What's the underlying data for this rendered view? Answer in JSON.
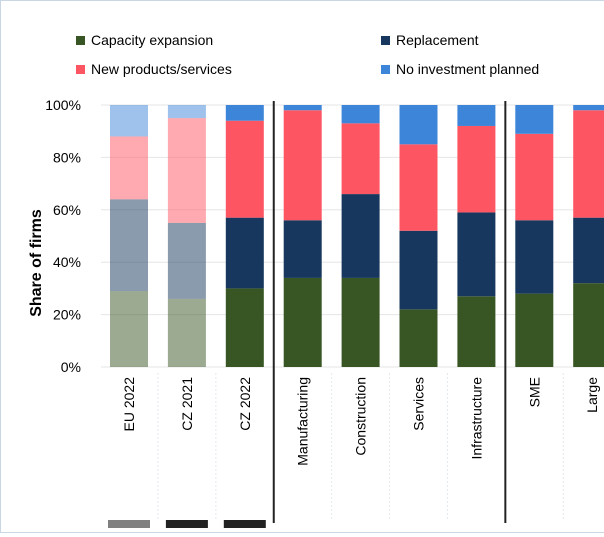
{
  "chart_data": {
    "type": "bar",
    "stacked": true,
    "ylabel": "Share of firms",
    "ylim": [
      0,
      100
    ],
    "yticks": [
      "0%",
      "20%",
      "40%",
      "60%",
      "80%",
      "100%"
    ],
    "legend_placement": "top",
    "categories": [
      "EU 2022",
      "CZ 2021",
      "CZ 2022",
      "Manufacturing",
      "Construction",
      "Services",
      "Infrastructure",
      "SME",
      "Large"
    ],
    "series": [
      {
        "name": "Capacity expansion",
        "color": "#375623",
        "values": [
          29,
          26,
          30,
          34,
          34,
          22,
          27,
          28,
          32
        ]
      },
      {
        "name": "Replacement",
        "color": "#17375e",
        "values": [
          35,
          29,
          27,
          22,
          32,
          30,
          32,
          28,
          25
        ]
      },
      {
        "name": "New products/services",
        "color": "#fe5562",
        "values": [
          24,
          40,
          37,
          42,
          27,
          33,
          33,
          33,
          41
        ]
      },
      {
        "name": "No investment planned",
        "color": "#3d85d8",
        "values": [
          12,
          5,
          6,
          2,
          7,
          15,
          8,
          11,
          2
        ]
      }
    ],
    "faded_categories": [
      "EU 2022",
      "CZ 2021"
    ],
    "group_separators_after": [
      "CZ 2022",
      "Infrastructure"
    ],
    "bottom_markers": [
      {
        "category": "EU 2022",
        "color": "#808080"
      },
      {
        "category": "CZ 2021",
        "color": "#222222"
      },
      {
        "category": "CZ 2022",
        "color": "#222222"
      }
    ]
  }
}
